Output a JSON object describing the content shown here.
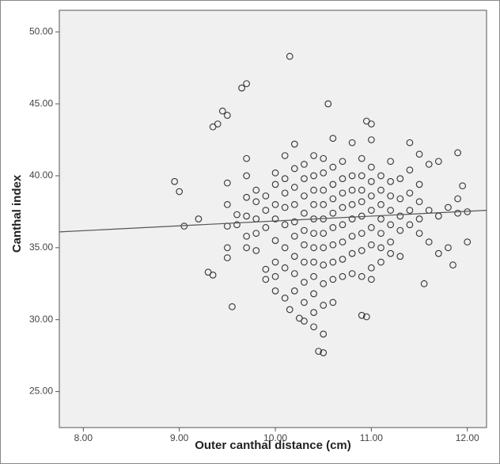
{
  "chart_data": {
    "type": "scatter",
    "x_label": "Outer canthal distance (cm)",
    "y_label": "Canthal index",
    "xlim": [
      7.75,
      12.2
    ],
    "ylim": [
      22.5,
      51.5
    ],
    "xticks": [
      {
        "value": 8,
        "label": "8.00"
      },
      {
        "value": 9,
        "label": "9.00"
      },
      {
        "value": 10,
        "label": "10.00"
      },
      {
        "value": 11,
        "label": "11.00"
      },
      {
        "value": 12,
        "label": "12.00"
      }
    ],
    "yticks": [
      {
        "value": 25,
        "label": "25.00"
      },
      {
        "value": 30,
        "label": "30.00"
      },
      {
        "value": 35,
        "label": "35.00"
      },
      {
        "value": 40,
        "label": "40.00"
      },
      {
        "value": 45,
        "label": "45.00"
      },
      {
        "value": 50,
        "label": "50.00"
      }
    ],
    "color": "#333333",
    "trend_line": {
      "x": [
        7.75,
        12.2
      ],
      "y": [
        36.1,
        37.6
      ],
      "color": "#555555"
    },
    "x": [
      10.15,
      9.7,
      9.65,
      9.45,
      9.5,
      9.35,
      9.4,
      10.55,
      10.95,
      11.0,
      8.95,
      9.0,
      9.05,
      9.2,
      9.3,
      9.35,
      9.55,
      10.5,
      10.45,
      11.55,
      11.9,
      12.0,
      11.85,
      11.7,
      10.9,
      10.95,
      10.15,
      10.25,
      9.5,
      9.5,
      9.5,
      9.5,
      9.5,
      9.6,
      9.6,
      9.7,
      9.7,
      9.7,
      9.7,
      9.7,
      9.7,
      9.8,
      9.8,
      9.8,
      9.8,
      9.8,
      9.9,
      9.9,
      9.9,
      9.9,
      9.9,
      10.0,
      10.0,
      10.0,
      10.0,
      10.0,
      10.0,
      10.0,
      10.0,
      10.1,
      10.1,
      10.1,
      10.1,
      10.1,
      10.1,
      10.1,
      10.1,
      10.2,
      10.2,
      10.2,
      10.2,
      10.2,
      10.2,
      10.2,
      10.2,
      10.2,
      10.3,
      10.3,
      10.3,
      10.3,
      10.3,
      10.3,
      10.3,
      10.3,
      10.3,
      10.3,
      10.4,
      10.4,
      10.4,
      10.4,
      10.4,
      10.4,
      10.4,
      10.4,
      10.4,
      10.4,
      10.4,
      10.4,
      10.5,
      10.5,
      10.5,
      10.5,
      10.5,
      10.5,
      10.5,
      10.5,
      10.5,
      10.5,
      10.5,
      10.6,
      10.6,
      10.6,
      10.6,
      10.6,
      10.6,
      10.6,
      10.6,
      10.6,
      10.6,
      10.7,
      10.7,
      10.7,
      10.7,
      10.7,
      10.7,
      10.7,
      10.7,
      10.8,
      10.8,
      10.8,
      10.8,
      10.8,
      10.8,
      10.8,
      10.8,
      10.9,
      10.9,
      10.9,
      10.9,
      10.9,
      10.9,
      10.9,
      10.9,
      11.0,
      11.0,
      11.0,
      11.0,
      11.0,
      11.0,
      11.0,
      11.0,
      11.0,
      11.1,
      11.1,
      11.1,
      11.1,
      11.1,
      11.1,
      11.1,
      11.2,
      11.2,
      11.2,
      11.2,
      11.2,
      11.2,
      11.2,
      11.3,
      11.3,
      11.3,
      11.3,
      11.3,
      11.4,
      11.4,
      11.4,
      11.4,
      11.4,
      11.5,
      11.5,
      11.5,
      11.5,
      11.5,
      11.6,
      11.6,
      11.6,
      11.7,
      11.7,
      11.8,
      11.8,
      11.9,
      11.9,
      11.95,
      12.0
    ],
    "values": [
      48.3,
      46.4,
      46.1,
      44.5,
      44.2,
      43.4,
      43.6,
      45.0,
      43.8,
      43.6,
      39.6,
      38.9,
      36.5,
      37.0,
      33.3,
      33.1,
      30.9,
      27.7,
      27.8,
      32.5,
      41.6,
      35.4,
      33.8,
      34.6,
      30.3,
      30.2,
      30.7,
      30.1,
      39.5,
      38.0,
      36.5,
      35.0,
      34.3,
      37.3,
      36.6,
      41.2,
      40.0,
      38.5,
      37.2,
      35.8,
      35.0,
      39.0,
      38.2,
      37.0,
      36.0,
      34.8,
      38.6,
      37.6,
      36.4,
      33.5,
      32.8,
      40.2,
      39.4,
      38.0,
      37.0,
      35.5,
      34.0,
      33.0,
      32.0,
      41.4,
      39.8,
      38.8,
      37.8,
      36.6,
      35.0,
      33.6,
      31.5,
      42.2,
      40.5,
      39.2,
      38.0,
      36.8,
      35.8,
      34.4,
      33.2,
      32.0,
      40.8,
      39.8,
      38.6,
      37.4,
      36.2,
      35.2,
      34.0,
      32.6,
      31.2,
      29.9,
      41.4,
      40.0,
      39.0,
      38.0,
      37.0,
      36.0,
      35.0,
      34.0,
      33.0,
      31.8,
      30.5,
      29.5,
      41.2,
      40.2,
      39.0,
      38.0,
      37.0,
      36.0,
      35.0,
      33.8,
      32.5,
      31.0,
      29.0,
      42.6,
      40.6,
      39.4,
      38.4,
      37.4,
      36.4,
      35.2,
      34.0,
      32.8,
      31.2,
      41.0,
      39.8,
      38.8,
      37.8,
      36.6,
      35.4,
      34.2,
      33.0,
      42.3,
      40.0,
      39.0,
      38.0,
      37.0,
      35.8,
      34.6,
      33.2,
      41.2,
      40.0,
      39.0,
      38.2,
      37.2,
      36.0,
      34.8,
      33.0,
      42.5,
      40.6,
      39.6,
      38.6,
      37.6,
      36.4,
      35.2,
      33.6,
      32.8,
      40.0,
      39.0,
      38.0,
      37.0,
      36.0,
      35.0,
      34.0,
      41.0,
      39.6,
      38.6,
      37.6,
      36.6,
      35.4,
      34.6,
      39.8,
      38.4,
      37.2,
      36.2,
      34.4,
      42.3,
      40.4,
      38.8,
      37.6,
      36.6,
      41.5,
      39.4,
      38.2,
      37.0,
      36.0,
      40.8,
      37.6,
      35.4,
      41.0,
      37.2,
      37.8,
      35.0,
      38.4,
      37.4,
      39.3,
      37.5
    ]
  }
}
